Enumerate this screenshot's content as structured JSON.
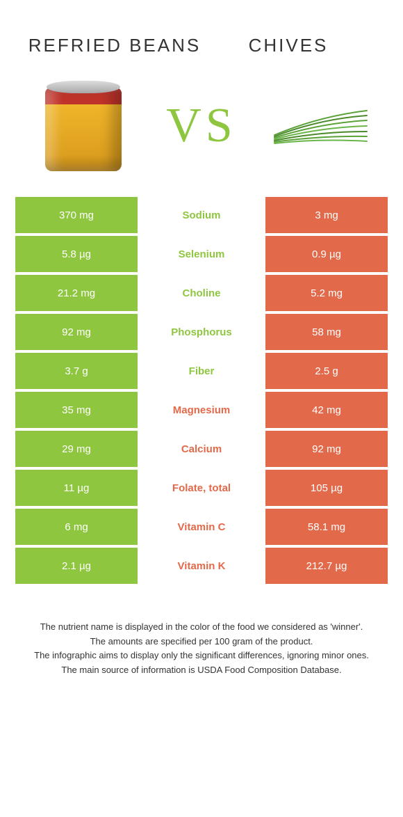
{
  "colors": {
    "green": "#8ec63f",
    "orange": "#e26a4a",
    "white": "#ffffff",
    "text": "#333333"
  },
  "left": {
    "title": "REFRIED BEANS"
  },
  "right": {
    "title": "CHIVES"
  },
  "vs_label": "VS",
  "rows": [
    {
      "left": "370 mg",
      "name": "Sodium",
      "right": "3 mg",
      "winner": "left"
    },
    {
      "left": "5.8 µg",
      "name": "Selenium",
      "right": "0.9 µg",
      "winner": "left"
    },
    {
      "left": "21.2 mg",
      "name": "Choline",
      "right": "5.2 mg",
      "winner": "left"
    },
    {
      "left": "92 mg",
      "name": "Phosphorus",
      "right": "58 mg",
      "winner": "left"
    },
    {
      "left": "3.7 g",
      "name": "Fiber",
      "right": "2.5 g",
      "winner": "left"
    },
    {
      "left": "35 mg",
      "name": "Magnesium",
      "right": "42 mg",
      "winner": "right"
    },
    {
      "left": "29 mg",
      "name": "Calcium",
      "right": "92 mg",
      "winner": "right"
    },
    {
      "left": "11 µg",
      "name": "Folate, total",
      "right": "105 µg",
      "winner": "right"
    },
    {
      "left": "6 mg",
      "name": "Vitamin C",
      "right": "58.1 mg",
      "winner": "right"
    },
    {
      "left": "2.1 µg",
      "name": "Vitamin K",
      "right": "212.7 µg",
      "winner": "right"
    }
  ],
  "footnotes": [
    "The nutrient name is displayed in the color of the food we considered as 'winner'.",
    "The amounts are specified per 100 gram of the product.",
    "The infographic aims to display only the significant differences, ignoring minor ones.",
    "The main source of information is USDA Food Composition Database."
  ]
}
